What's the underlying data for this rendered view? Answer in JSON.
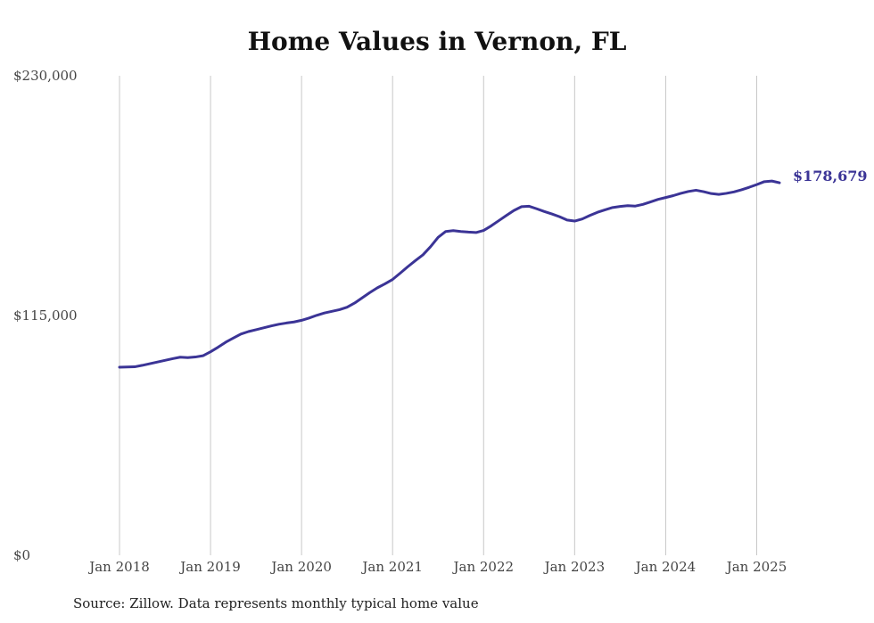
{
  "chart_data": {
    "type": "line",
    "title": "Home Values in Vernon, FL",
    "xlabel": "",
    "ylabel": "",
    "ylim": [
      0,
      230000
    ],
    "y_ticks": [
      "$0",
      "$115,000",
      "$230,000"
    ],
    "y_tick_values": [
      0,
      115000,
      230000
    ],
    "x_ticks": [
      "Jan 2018",
      "Jan 2019",
      "Jan 2020",
      "Jan 2021",
      "Jan 2022",
      "Jan 2023",
      "Jan 2024",
      "Jan 2025"
    ],
    "x_tick_values": [
      "2018-01",
      "2019-01",
      "2020-01",
      "2021-01",
      "2022-01",
      "2023-01",
      "2024-01",
      "2025-01"
    ],
    "xlim": [
      "2018-01",
      "2025-04"
    ],
    "grid": "vertical",
    "line_color": "#3b3496",
    "end_label": "$178,679",
    "series": [
      {
        "x": [
          "2018-01",
          "2018-02",
          "2018-03",
          "2018-04",
          "2018-05",
          "2018-06",
          "2018-07",
          "2018-08",
          "2018-09",
          "2018-10",
          "2018-11",
          "2018-12",
          "2019-01",
          "2019-02",
          "2019-03",
          "2019-04",
          "2019-05",
          "2019-06",
          "2019-07",
          "2019-08",
          "2019-09",
          "2019-10",
          "2019-11",
          "2019-12",
          "2020-01",
          "2020-02",
          "2020-03",
          "2020-04",
          "2020-05",
          "2020-06",
          "2020-07",
          "2020-08",
          "2020-09",
          "2020-10",
          "2020-11",
          "2020-12",
          "2021-01",
          "2021-02",
          "2021-03",
          "2021-04",
          "2021-05",
          "2021-06",
          "2021-07",
          "2021-08",
          "2021-09",
          "2021-10",
          "2021-11",
          "2021-12",
          "2022-01",
          "2022-02",
          "2022-03",
          "2022-04",
          "2022-05",
          "2022-06",
          "2022-07",
          "2022-08",
          "2022-09",
          "2022-10",
          "2022-11",
          "2022-12",
          "2023-01",
          "2023-02",
          "2023-03",
          "2023-04",
          "2023-05",
          "2023-06",
          "2023-07",
          "2023-08",
          "2023-09",
          "2023-10",
          "2023-11",
          "2023-12",
          "2024-01",
          "2024-02",
          "2024-03",
          "2024-04",
          "2024-05",
          "2024-06",
          "2024-07",
          "2024-08",
          "2024-09",
          "2024-10",
          "2024-11",
          "2024-12",
          "2025-01",
          "2025-02",
          "2025-03",
          "2025-04"
        ],
        "values": [
          90200,
          90300,
          90400,
          91100,
          91900,
          92700,
          93500,
          94300,
          95000,
          94800,
          95100,
          95700,
          97600,
          99800,
          102200,
          104200,
          106100,
          107300,
          108200,
          109100,
          110000,
          110800,
          111400,
          111900,
          112700,
          113800,
          115100,
          116200,
          117000,
          117800,
          119000,
          121000,
          123500,
          126000,
          128300,
          130200,
          132300,
          135300,
          138400,
          141300,
          144100,
          148000,
          152500,
          155300,
          155700,
          155300,
          155000,
          154800,
          155800,
          158000,
          160500,
          163000,
          165400,
          167200,
          167400,
          166200,
          164900,
          163700,
          162400,
          160800,
          160300,
          161300,
          163000,
          164500,
          165700,
          166800,
          167300,
          167700,
          167500,
          168300,
          169500,
          170700,
          171600,
          172500,
          173600,
          174500,
          175100,
          174400,
          173500,
          173100,
          173600,
          174300,
          175300,
          176500,
          177800,
          179200,
          179500,
          178679
        ]
      }
    ]
  },
  "footer": {
    "source": "Source: Zillow. Data represents monthly typical home value"
  }
}
